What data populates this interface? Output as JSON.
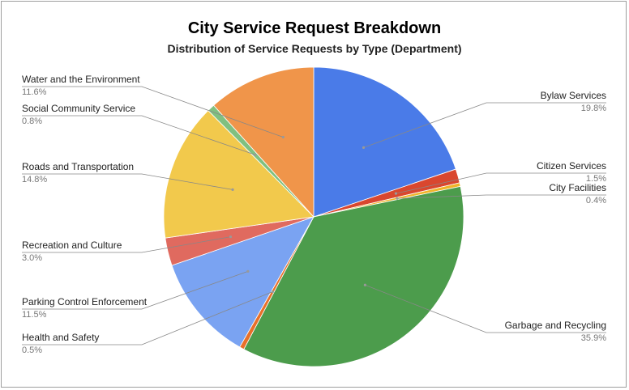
{
  "chart_data": {
    "type": "pie",
    "title": "City Service Request Breakdown",
    "subtitle": "Distribution of Service Requests by Type (Department)",
    "slices": [
      {
        "label": "Bylaw Services",
        "value": 19.8,
        "pct_label": "19.8%",
        "color": "#4a7be8"
      },
      {
        "label": "Citizen Services",
        "value": 1.5,
        "pct_label": "1.5%",
        "color": "#d9472f"
      },
      {
        "label": "City Facilities",
        "value": 0.4,
        "pct_label": "0.4%",
        "color": "#f0b429"
      },
      {
        "label": "Garbage and Recycling",
        "value": 35.9,
        "pct_label": "35.9%",
        "color": "#4c9c4c"
      },
      {
        "label": "Health and Safety",
        "value": 0.5,
        "pct_label": "0.5%",
        "color": "#e8702a"
      },
      {
        "label": "Parking Control Enforcement",
        "value": 11.5,
        "pct_label": "11.5%",
        "color": "#7aa3f2"
      },
      {
        "label": "Recreation and Culture",
        "value": 3.0,
        "pct_label": "3.0%",
        "color": "#e06a5f"
      },
      {
        "label": "Roads and Transportation",
        "value": 14.8,
        "pct_label": "14.8%",
        "color": "#f2c94c"
      },
      {
        "label": "Social Community Service",
        "value": 0.8,
        "pct_label": "0.8%",
        "color": "#80c080"
      },
      {
        "label": "Water and the Environment",
        "value": 11.6,
        "pct_label": "11.6%",
        "color": "#f0954a"
      }
    ]
  }
}
